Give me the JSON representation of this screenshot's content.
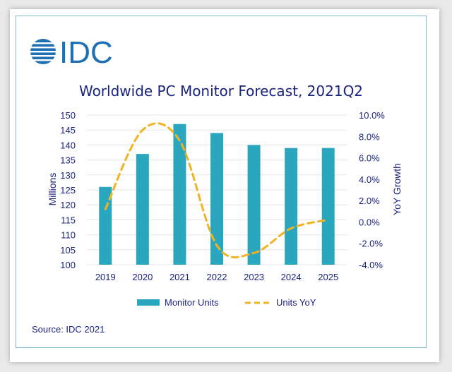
{
  "brand": {
    "name": "IDC",
    "color": "#1f6fb3"
  },
  "colors": {
    "bar": "#2aa7bf",
    "line": "#f0b323",
    "text": "#1a237e"
  },
  "chart_data": {
    "type": "bar+line",
    "title": "Worldwide PC Monitor Forecast, 2021Q2",
    "categories": [
      "2019",
      "2020",
      "2021",
      "2022",
      "2023",
      "2024",
      "2025"
    ],
    "series": [
      {
        "name": "Monitor Units",
        "type": "bar",
        "axis": "left",
        "values": [
          126,
          137,
          147,
          144,
          140,
          139,
          139
        ]
      },
      {
        "name": "Units YoY",
        "type": "line",
        "style": "dashed",
        "axis": "right",
        "values": [
          1.2,
          8.6,
          7.6,
          -2.2,
          -2.9,
          -0.6,
          0.2
        ]
      }
    ],
    "ylabel": "Millions",
    "y2label": "YoY Growth",
    "ylim": [
      100,
      150
    ],
    "yticks": [
      "100",
      "105",
      "110",
      "115",
      "120",
      "125",
      "130",
      "135",
      "140",
      "145",
      "150"
    ],
    "y2lim": [
      -4,
      10
    ],
    "y2ticks": [
      "-4.0%",
      "-2.0%",
      "0.0%",
      "2.0%",
      "4.0%",
      "6.0%",
      "8.0%",
      "10.0%"
    ],
    "legend": [
      "Monitor Units",
      "Units YoY"
    ],
    "legend_position": "bottom"
  },
  "source": "Source: IDC 2021"
}
